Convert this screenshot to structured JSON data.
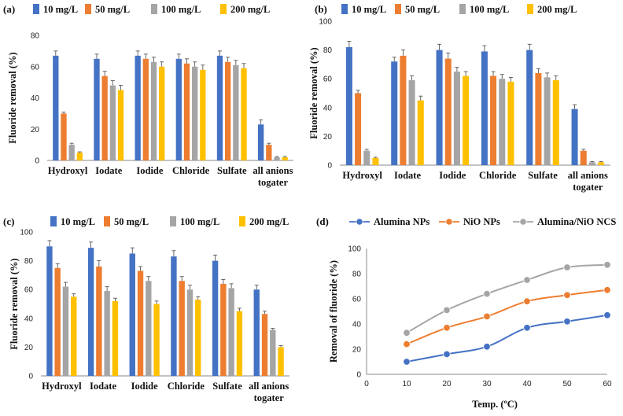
{
  "chart_data": [
    {
      "panel_label": "(a)",
      "type": "bar",
      "ylabel": "Fluoride removal (%)",
      "ylim": [
        0,
        80
      ],
      "yticks": [
        0,
        20,
        40,
        60,
        80
      ],
      "categories": [
        "Hydroxyl",
        "Iodate",
        "Iodide",
        "Chloride",
        "Sulfate",
        "all anions togater"
      ],
      "series": [
        {
          "name": "10 mg/L",
          "color": "#4472C4",
          "values": [
            67,
            65,
            67,
            65,
            67,
            23
          ],
          "errors": [
            3,
            3,
            3,
            3,
            3,
            3
          ]
        },
        {
          "name": "50 mg/L",
          "color": "#ED7D31",
          "values": [
            30,
            54,
            65,
            62,
            63,
            10
          ],
          "errors": [
            1,
            3,
            3,
            3,
            3,
            1
          ]
        },
        {
          "name": "100 mg/L",
          "color": "#A5A5A5",
          "values": [
            10,
            48,
            63,
            60,
            61,
            2
          ],
          "errors": [
            1,
            3,
            3,
            3,
            3,
            0.5
          ]
        },
        {
          "name": "200 mg/L",
          "color": "#FFC000",
          "values": [
            5,
            45,
            60,
            58,
            59,
            2
          ],
          "errors": [
            0.5,
            3,
            3,
            3,
            3,
            0.5
          ]
        }
      ]
    },
    {
      "panel_label": "(b)",
      "type": "bar",
      "ylabel": "Fluoride removal (%)",
      "ylim": [
        0,
        100
      ],
      "yticks": [
        0,
        20,
        40,
        60,
        80,
        100
      ],
      "categories": [
        "Hydroxyl",
        "Iodate",
        "Iodide",
        "Chloride",
        "Sulfate",
        "all anions togater"
      ],
      "series": [
        {
          "name": "10 mg/L",
          "color": "#4472C4",
          "values": [
            82,
            72,
            80,
            79,
            80,
            39
          ],
          "errors": [
            4,
            3,
            4,
            4,
            4,
            3
          ]
        },
        {
          "name": "50 mg/L",
          "color": "#ED7D31",
          "values": [
            50,
            76,
            74,
            62,
            64,
            10
          ],
          "errors": [
            2,
            4,
            4,
            3,
            3,
            1
          ]
        },
        {
          "name": "100 mg/L",
          "color": "#A5A5A5",
          "values": [
            10,
            59,
            65,
            60,
            61,
            2
          ],
          "errors": [
            1,
            3,
            3,
            3,
            3,
            0.5
          ]
        },
        {
          "name": "200 mg/L",
          "color": "#FFC000",
          "values": [
            5,
            45,
            62,
            58,
            59,
            2
          ],
          "errors": [
            0.5,
            3,
            3,
            3,
            3,
            0.5
          ]
        }
      ]
    },
    {
      "panel_label": "(c)",
      "type": "bar",
      "ylabel": "Fluoride removal (%)",
      "ylim": [
        0,
        100
      ],
      "yticks": [
        0,
        20,
        40,
        60,
        80,
        100
      ],
      "categories": [
        "Hydroxyl",
        "Iodate",
        "Iodide",
        "Chloride",
        "Sulfate",
        "all anions togater"
      ],
      "series": [
        {
          "name": "10 mg/L",
          "color": "#4472C4",
          "values": [
            90,
            89,
            85,
            83,
            80,
            60
          ],
          "errors": [
            4,
            4,
            4,
            4,
            4,
            3
          ]
        },
        {
          "name": "50 mg/L",
          "color": "#ED7D31",
          "values": [
            75,
            76,
            73,
            66,
            64,
            43
          ],
          "errors": [
            3,
            4,
            3,
            3,
            3,
            2
          ]
        },
        {
          "name": "100 mg/L",
          "color": "#A5A5A5",
          "values": [
            62,
            59,
            66,
            60,
            61,
            32
          ],
          "errors": [
            3,
            3,
            3,
            3,
            3,
            1
          ]
        },
        {
          "name": "200 mg/L",
          "color": "#FFC000",
          "values": [
            55,
            52,
            50,
            53,
            45,
            20
          ],
          "errors": [
            2,
            2,
            2,
            2,
            2,
            1
          ]
        }
      ]
    },
    {
      "panel_label": "(d)",
      "type": "line",
      "xlabel": "Temp. (ºC)",
      "ylabel": "Removal of fluoride (%)",
      "xlim": [
        0,
        60
      ],
      "ylim": [
        0,
        100
      ],
      "xticks": [
        0,
        10,
        20,
        30,
        40,
        50,
        60
      ],
      "yticks": [
        0,
        20,
        40,
        60,
        80,
        100
      ],
      "x": [
        10,
        20,
        30,
        40,
        50,
        60
      ],
      "series": [
        {
          "name": "Alumina NPs",
          "color": "#4472C4",
          "values": [
            10,
            16,
            22,
            37,
            42,
            47
          ]
        },
        {
          "name": "NiO NPs",
          "color": "#ED7D31",
          "values": [
            24,
            37,
            46,
            58,
            63,
            67
          ]
        },
        {
          "name": "Alumina/NiO NCS",
          "color": "#A5A5A5",
          "values": [
            33,
            51,
            64,
            75,
            85,
            87
          ]
        }
      ]
    }
  ]
}
